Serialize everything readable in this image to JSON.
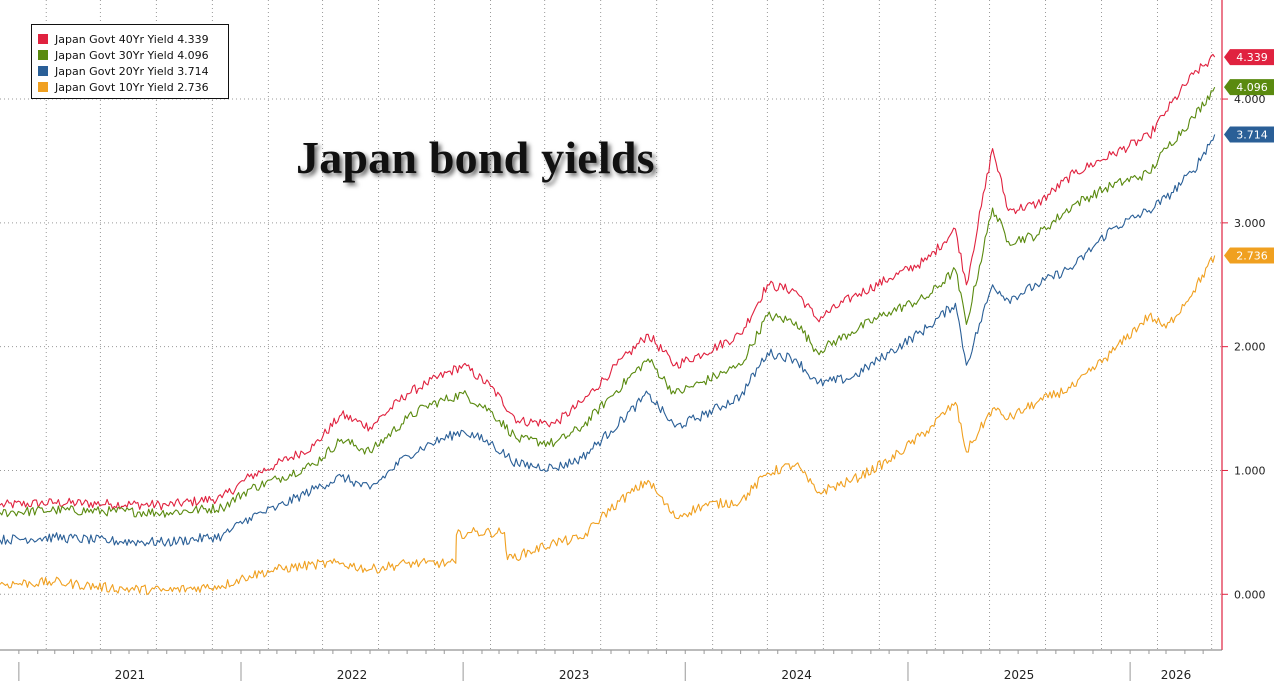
{
  "chart_data": {
    "type": "line",
    "title": "Japan bond yields",
    "xlabel": "",
    "ylabel": "",
    "ylim": [
      -0.45,
      4.8
    ],
    "yticks": [
      0.0,
      1.0,
      2.0,
      3.0,
      4.0
    ],
    "ytick_labels": [
      "0.000",
      "1.000",
      "2.000",
      "3.000",
      "4.000"
    ],
    "x_range": [
      "2020-12-01",
      "2026-06-01"
    ],
    "year_labels": [
      "2021",
      "2022",
      "2023",
      "2024",
      "2025",
      "2026"
    ],
    "grid": true,
    "legend_placement": "top-left",
    "legend": [
      {
        "label": "Japan Govt 40Yr Yield",
        "value": "4.339",
        "color": "#e0223f"
      },
      {
        "label": "Japan Govt 30Yr Yield",
        "value": "4.096",
        "color": "#5a8a0f"
      },
      {
        "label": "Japan Govt 20Yr Yield",
        "value": "3.714",
        "color": "#2a5f97"
      },
      {
        "label": "Japan Govt 10Yr Yield",
        "value": "2.736",
        "color": "#f0a020"
      }
    ],
    "series": [
      {
        "name": "Japan Govt 40Yr Yield",
        "color": "#e0223f",
        "last_label": "4.339",
        "points": [
          [
            "2020-12-01",
            0.72
          ],
          [
            "2021-03-01",
            0.74
          ],
          [
            "2021-06-01",
            0.73
          ],
          [
            "2021-09-01",
            0.72
          ],
          [
            "2021-12-01",
            0.78
          ],
          [
            "2022-01-15",
            0.95
          ],
          [
            "2022-03-01",
            1.05
          ],
          [
            "2022-05-01",
            1.2
          ],
          [
            "2022-06-15",
            1.45
          ],
          [
            "2022-08-01",
            1.35
          ],
          [
            "2022-10-01",
            1.62
          ],
          [
            "2022-11-01",
            1.7
          ],
          [
            "2023-01-01",
            1.85
          ],
          [
            "2023-02-15",
            1.68
          ],
          [
            "2023-04-01",
            1.4
          ],
          [
            "2023-06-01",
            1.38
          ],
          [
            "2023-07-15",
            1.55
          ],
          [
            "2023-09-01",
            1.8
          ],
          [
            "2023-11-01",
            2.1
          ],
          [
            "2023-12-15",
            1.85
          ],
          [
            "2024-02-01",
            1.95
          ],
          [
            "2024-04-01",
            2.1
          ],
          [
            "2024-05-15",
            2.5
          ],
          [
            "2024-07-01",
            2.45
          ],
          [
            "2024-08-05",
            2.22
          ],
          [
            "2024-10-01",
            2.4
          ],
          [
            "2024-12-01",
            2.55
          ],
          [
            "2025-02-01",
            2.7
          ],
          [
            "2025-03-20",
            2.95
          ],
          [
            "2025-04-07",
            2.5
          ],
          [
            "2025-05-20",
            3.6
          ],
          [
            "2025-06-15",
            3.1
          ],
          [
            "2025-08-01",
            3.15
          ],
          [
            "2025-10-01",
            3.4
          ],
          [
            "2025-12-01",
            3.55
          ],
          [
            "2026-02-01",
            3.7
          ],
          [
            "2026-03-01",
            3.9
          ],
          [
            "2026-04-15",
            4.2
          ],
          [
            "2026-05-20",
            4.339
          ]
        ]
      },
      {
        "name": "Japan Govt 30Yr Yield",
        "color": "#5a8a0f",
        "last_label": "4.096",
        "points": [
          [
            "2020-12-01",
            0.66
          ],
          [
            "2021-03-01",
            0.68
          ],
          [
            "2021-06-01",
            0.67
          ],
          [
            "2021-09-01",
            0.66
          ],
          [
            "2021-12-01",
            0.7
          ],
          [
            "2022-01-15",
            0.85
          ],
          [
            "2022-03-01",
            0.93
          ],
          [
            "2022-05-01",
            1.05
          ],
          [
            "2022-06-15",
            1.25
          ],
          [
            "2022-08-01",
            1.15
          ],
          [
            "2022-10-01",
            1.42
          ],
          [
            "2022-11-01",
            1.52
          ],
          [
            "2023-01-01",
            1.62
          ],
          [
            "2023-02-15",
            1.48
          ],
          [
            "2023-04-01",
            1.25
          ],
          [
            "2023-06-01",
            1.22
          ],
          [
            "2023-07-15",
            1.35
          ],
          [
            "2023-09-01",
            1.6
          ],
          [
            "2023-11-01",
            1.9
          ],
          [
            "2023-12-15",
            1.62
          ],
          [
            "2024-02-01",
            1.72
          ],
          [
            "2024-04-01",
            1.85
          ],
          [
            "2024-05-15",
            2.25
          ],
          [
            "2024-07-01",
            2.2
          ],
          [
            "2024-08-05",
            1.96
          ],
          [
            "2024-10-01",
            2.12
          ],
          [
            "2024-12-01",
            2.28
          ],
          [
            "2025-02-01",
            2.4
          ],
          [
            "2025-03-20",
            2.62
          ],
          [
            "2025-04-07",
            2.18
          ],
          [
            "2025-05-20",
            3.12
          ],
          [
            "2025-06-15",
            2.85
          ],
          [
            "2025-08-01",
            2.9
          ],
          [
            "2025-10-01",
            3.15
          ],
          [
            "2025-12-01",
            3.3
          ],
          [
            "2026-02-01",
            3.4
          ],
          [
            "2026-03-01",
            3.6
          ],
          [
            "2026-04-15",
            3.85
          ],
          [
            "2026-05-20",
            4.096
          ]
        ]
      },
      {
        "name": "Japan Govt 20Yr Yield",
        "color": "#2a5f97",
        "last_label": "3.714",
        "points": [
          [
            "2020-12-01",
            0.44
          ],
          [
            "2021-03-01",
            0.46
          ],
          [
            "2021-06-01",
            0.43
          ],
          [
            "2021-09-01",
            0.42
          ],
          [
            "2021-12-01",
            0.47
          ],
          [
            "2022-01-15",
            0.62
          ],
          [
            "2022-03-01",
            0.7
          ],
          [
            "2022-05-01",
            0.85
          ],
          [
            "2022-06-15",
            0.95
          ],
          [
            "2022-08-01",
            0.85
          ],
          [
            "2022-10-01",
            1.12
          ],
          [
            "2022-11-01",
            1.2
          ],
          [
            "2023-01-01",
            1.32
          ],
          [
            "2023-02-15",
            1.22
          ],
          [
            "2023-04-01",
            1.05
          ],
          [
            "2023-06-01",
            1.02
          ],
          [
            "2023-07-15",
            1.1
          ],
          [
            "2023-09-01",
            1.32
          ],
          [
            "2023-11-01",
            1.62
          ],
          [
            "2023-12-15",
            1.35
          ],
          [
            "2024-02-01",
            1.45
          ],
          [
            "2024-04-01",
            1.6
          ],
          [
            "2024-05-15",
            1.95
          ],
          [
            "2024-07-01",
            1.9
          ],
          [
            "2024-08-05",
            1.7
          ],
          [
            "2024-10-01",
            1.75
          ],
          [
            "2024-12-01",
            1.95
          ],
          [
            "2025-02-01",
            2.15
          ],
          [
            "2025-03-20",
            2.35
          ],
          [
            "2025-04-07",
            1.85
          ],
          [
            "2025-05-20",
            2.5
          ],
          [
            "2025-06-15",
            2.38
          ],
          [
            "2025-08-01",
            2.5
          ],
          [
            "2025-10-01",
            2.65
          ],
          [
            "2025-12-01",
            2.95
          ],
          [
            "2026-02-01",
            3.1
          ],
          [
            "2026-03-01",
            3.2
          ],
          [
            "2026-04-15",
            3.42
          ],
          [
            "2026-05-20",
            3.714
          ]
        ]
      },
      {
        "name": "Japan Govt 10Yr Yield",
        "color": "#f0a020",
        "last_label": "2.736",
        "points": [
          [
            "2020-12-01",
            0.08
          ],
          [
            "2021-03-01",
            0.1
          ],
          [
            "2021-06-01",
            0.05
          ],
          [
            "2021-09-01",
            0.03
          ],
          [
            "2021-12-01",
            0.07
          ],
          [
            "2022-01-15",
            0.15
          ],
          [
            "2022-03-01",
            0.2
          ],
          [
            "2022-05-01",
            0.24
          ],
          [
            "2022-06-15",
            0.25
          ],
          [
            "2022-08-01",
            0.2
          ],
          [
            "2022-10-01",
            0.25
          ],
          [
            "2022-11-01",
            0.25
          ],
          [
            "2022-12-20",
            0.25
          ],
          [
            "2022-12-21",
            0.48
          ],
          [
            "2023-01-15",
            0.5
          ],
          [
            "2023-03-10",
            0.5
          ],
          [
            "2023-03-15",
            0.28
          ],
          [
            "2023-06-01",
            0.42
          ],
          [
            "2023-07-15",
            0.45
          ],
          [
            "2023-08-15",
            0.62
          ],
          [
            "2023-09-15",
            0.75
          ],
          [
            "2023-11-01",
            0.92
          ],
          [
            "2023-12-15",
            0.62
          ],
          [
            "2024-02-01",
            0.72
          ],
          [
            "2024-04-01",
            0.75
          ],
          [
            "2024-05-15",
            0.98
          ],
          [
            "2024-07-01",
            1.05
          ],
          [
            "2024-08-05",
            0.82
          ],
          [
            "2024-10-01",
            0.92
          ],
          [
            "2024-12-01",
            1.08
          ],
          [
            "2025-02-01",
            1.32
          ],
          [
            "2025-03-20",
            1.55
          ],
          [
            "2025-04-07",
            1.15
          ],
          [
            "2025-05-20",
            1.5
          ],
          [
            "2025-06-15",
            1.42
          ],
          [
            "2025-08-01",
            1.55
          ],
          [
            "2025-10-01",
            1.68
          ],
          [
            "2025-12-01",
            1.95
          ],
          [
            "2026-02-01",
            2.25
          ],
          [
            "2026-03-01",
            2.15
          ],
          [
            "2026-04-15",
            2.45
          ],
          [
            "2026-05-20",
            2.736
          ]
        ]
      }
    ]
  }
}
